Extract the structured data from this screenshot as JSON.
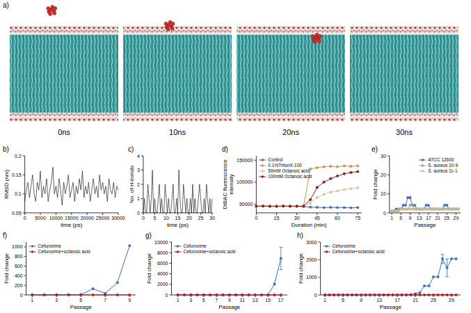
{
  "simulation": {
    "panel_label": "a)",
    "frames": [
      "0ns",
      "10ns",
      "20ns",
      "30ns"
    ]
  },
  "chart_data": [
    {
      "panel_label": "b)",
      "type": "line",
      "x_label": "time (ps)",
      "y_label": "RMSD (nm)",
      "x": [
        0,
        500,
        1000,
        1500,
        2000,
        2500,
        3000,
        3500,
        4000,
        4500,
        5000,
        5500,
        6000,
        6500,
        7000,
        7500,
        8000,
        8500,
        9000,
        9500,
        10000,
        10500,
        11000,
        11500,
        12000,
        12500,
        13000,
        13500,
        14000,
        14500,
        15000,
        15500,
        16000,
        16500,
        17000,
        17500,
        18000,
        18500,
        19000,
        19500,
        20000,
        20500,
        21000,
        21500,
        22000,
        22500,
        23000,
        23500,
        24000,
        24500,
        25000,
        25500,
        26000,
        26500,
        27000,
        27500,
        28000,
        28500,
        29000,
        29500,
        30000
      ],
      "values": [
        0.08,
        0.11,
        0.13,
        0.09,
        0.12,
        0.15,
        0.1,
        0.08,
        0.13,
        0.11,
        0.16,
        0.09,
        0.12,
        0.1,
        0.14,
        0.08,
        0.11,
        0.13,
        0.17,
        0.1,
        0.12,
        0.09,
        0.14,
        0.11,
        0.07,
        0.13,
        0.1,
        0.12,
        0.15,
        0.09,
        0.11,
        0.13,
        0.08,
        0.12,
        0.1,
        0.14,
        0.11,
        0.16,
        0.09,
        0.12,
        0.1,
        0.13,
        0.08,
        0.11,
        0.14,
        0.1,
        0.12,
        0.09,
        0.15,
        0.11,
        0.13,
        0.1,
        0.12,
        0.08,
        0.14,
        0.11,
        0.1,
        0.13,
        0.09,
        0.12,
        0.11
      ],
      "color": "#000000",
      "marker": "none",
      "xlim": [
        0,
        30000
      ],
      "xticks": [
        0,
        5000,
        10000,
        15000,
        20000,
        25000,
        30000
      ],
      "ylim": [
        0.05,
        0.2
      ],
      "yticks": [
        0.05,
        0.1,
        0.15,
        0.2
      ],
      "grid": false
    },
    {
      "panel_label": "c)",
      "type": "line",
      "x_label": "time (ps)",
      "y_label": "No. of H-bonds",
      "x": [
        0,
        0.5,
        1,
        1.5,
        2,
        2.5,
        3,
        3.5,
        4,
        4.5,
        5,
        5.5,
        6,
        6.5,
        7,
        7.5,
        8,
        8.5,
        9,
        9.5,
        10,
        10.5,
        11,
        11.5,
        12,
        12.5,
        13,
        13.5,
        14,
        14.5,
        15,
        15.5,
        16,
        16.5,
        17,
        17.5,
        18,
        18.5,
        19,
        19.5,
        20,
        20.5,
        21,
        21.5,
        22,
        22.5,
        23,
        23.5,
        24,
        24.5,
        25,
        25.5,
        26,
        26.5,
        27,
        27.5,
        28,
        28.5,
        29,
        29.5,
        30
      ],
      "values": [
        0,
        1,
        0,
        0,
        2,
        1,
        0,
        1,
        3,
        0,
        1,
        0,
        0,
        1,
        2,
        0,
        1,
        0,
        0,
        2,
        1,
        0,
        1,
        0,
        0,
        1,
        2,
        0,
        0,
        1,
        0,
        3,
        1,
        0,
        0,
        2,
        1,
        0,
        1,
        0,
        0,
        1,
        0,
        2,
        0,
        1,
        0,
        0,
        1,
        2,
        1,
        0,
        0,
        1,
        0,
        2,
        1,
        0,
        1,
        0,
        1
      ],
      "color": "#000000",
      "marker": "none",
      "xlim": [
        0,
        30
      ],
      "xticks": [
        0,
        5,
        10,
        15,
        20,
        25,
        30
      ],
      "ylim": [
        0,
        4
      ],
      "yticks": [
        0,
        1,
        2,
        3,
        4
      ],
      "grid": false
    },
    {
      "panel_label": "d)",
      "type": "line",
      "x_label": "Duration (min)",
      "y_label": "DiBAC fluorescence intensity",
      "x": [
        0,
        5,
        10,
        15,
        20,
        25,
        30,
        35,
        40,
        45,
        50,
        55,
        60,
        65,
        70,
        75
      ],
      "series": [
        {
          "name": "Control",
          "color": "#3b6cc2",
          "values": [
            45000,
            45500,
            45000,
            44500,
            45000,
            45500,
            45000,
            44000,
            43000,
            42500,
            42000,
            42500,
            42000,
            42000,
            41500,
            42000
          ]
        },
        {
          "name": "0.1%TritonX-100",
          "color": "#c4964f",
          "values": [
            45000,
            45500,
            45000,
            45000,
            45500,
            45000,
            45500,
            45000,
            130000,
            133000,
            135000,
            136000,
            135000,
            137000,
            136000,
            137000
          ]
        },
        {
          "name": "50mM Octanoic acid",
          "color": "#dcc598",
          "values": [
            45000,
            45000,
            45500,
            45000,
            45000,
            45500,
            45000,
            45000,
            52000,
            65000,
            72000,
            77000,
            80000,
            83000,
            85000,
            87000
          ]
        },
        {
          "name": "100mM Octanoic acid",
          "color": "#8b1c1c",
          "values": [
            45000,
            45500,
            45000,
            45000,
            45500,
            45000,
            45000,
            45500,
            60000,
            88000,
            100000,
            108000,
            114000,
            119000,
            122000,
            124000
          ]
        }
      ],
      "marker": "circle",
      "legend": "top-left",
      "xlim": [
        0,
        78
      ],
      "xticks": [
        0,
        15,
        30,
        45,
        60,
        75
      ],
      "ylim": [
        30000,
        160000
      ],
      "yticks": [
        50000,
        100000,
        150000
      ],
      "grid": false
    },
    {
      "panel_label": "e)",
      "type": "line",
      "x_label": "Passage",
      "y_label": "Fold change",
      "x": [
        1,
        2,
        3,
        4,
        5,
        6,
        7,
        8,
        9,
        10,
        11,
        12,
        13,
        14,
        15,
        16,
        17,
        18,
        19,
        20,
        21,
        22,
        23,
        24,
        25,
        26,
        27,
        28,
        29,
        30
      ],
      "series": [
        {
          "name": "ATCC 12600",
          "color": "#3b6cc2",
          "values": [
            1,
            1,
            2,
            2,
            2,
            4,
            4,
            8,
            8,
            4,
            4,
            2,
            2,
            2,
            2,
            4,
            4,
            2,
            2,
            2,
            2,
            2,
            2,
            4,
            4,
            2,
            2,
            2,
            2,
            2
          ]
        },
        {
          "name": "S. aureus 10-9",
          "color": "#a39a86",
          "values": [
            1,
            1,
            1,
            2,
            2,
            2,
            2,
            2,
            4,
            4,
            2,
            2,
            2,
            2,
            2,
            2,
            2,
            2,
            2,
            2,
            2,
            2,
            2,
            2,
            2,
            2,
            2,
            2,
            2,
            2
          ]
        },
        {
          "name": "S. aureus 11-1",
          "color": "#c9b98d",
          "values": [
            1,
            1,
            1,
            1,
            2,
            2,
            2,
            2,
            2,
            2,
            2,
            2,
            2,
            2,
            2,
            2,
            2,
            2,
            2,
            2,
            2,
            2,
            2,
            2,
            2,
            2,
            2,
            2,
            2,
            2
          ]
        }
      ],
      "marker": "circle",
      "legend": "top-right",
      "xlim": [
        0,
        31
      ],
      "xticks": [
        1,
        5,
        9,
        13,
        17,
        21,
        25,
        29
      ],
      "ylim": [
        0,
        30
      ],
      "yticks": [
        0,
        10,
        20,
        30
      ],
      "grid": false
    },
    {
      "panel_label": "f)",
      "type": "line",
      "x_label": "Passage",
      "y_label": "Fold change",
      "x": [
        1,
        2,
        3,
        4,
        5,
        6,
        7,
        8,
        9
      ],
      "series": [
        {
          "name": "Cefuroxime",
          "color": "#3b6cc2",
          "values": [
            1,
            1,
            2,
            4,
            8,
            128,
            32,
            256,
            1024
          ]
        },
        {
          "name": "Cefuroxime+octanoic acid",
          "color": "#c0161c",
          "values": [
            1,
            1,
            1,
            1,
            1,
            1,
            1,
            1,
            1
          ]
        }
      ],
      "marker": "circle",
      "legend": "top-left",
      "xlim": [
        0.5,
        9.5
      ],
      "xticks": [
        1,
        3,
        5,
        7,
        9
      ],
      "ylim": [
        0,
        1100
      ],
      "yticks": [
        0,
        200,
        400,
        600,
        800,
        1000
      ],
      "grid": false
    },
    {
      "panel_label": "g)",
      "type": "line",
      "x_label": "Passage",
      "y_label": "Fold change",
      "x": [
        1,
        2,
        3,
        4,
        5,
        6,
        7,
        8,
        9,
        10,
        11,
        12,
        13,
        14,
        15,
        16,
        17
      ],
      "series": [
        {
          "name": "Cefuroxime",
          "color": "#3b6cc2",
          "values": [
            1,
            1,
            1,
            1,
            1,
            1,
            1,
            1,
            1,
            1,
            1,
            1,
            1,
            1,
            16,
            2048,
            6900
          ],
          "errors": [
            null,
            null,
            null,
            null,
            null,
            null,
            null,
            null,
            null,
            null,
            null,
            null,
            null,
            null,
            null,
            null,
            2100
          ]
        },
        {
          "name": "Cefuroxime+octanoic acid",
          "color": "#c0161c",
          "values": [
            1,
            1,
            1,
            1,
            1,
            1,
            1,
            1,
            1,
            1,
            1,
            1,
            1,
            1,
            1,
            1,
            1
          ]
        }
      ],
      "marker": "circle",
      "legend": "top-left",
      "xlim": [
        0,
        18
      ],
      "xticks": [
        1,
        3,
        5,
        7,
        9,
        11,
        13,
        15,
        17
      ],
      "ylim": [
        0,
        10000
      ],
      "yticks": [
        0,
        2000,
        4000,
        6000,
        8000,
        10000
      ],
      "grid": false
    },
    {
      "panel_label": "h)",
      "type": "line",
      "x_label": "Passage",
      "y_label": "Fold change",
      "x": [
        1,
        2,
        3,
        4,
        5,
        6,
        7,
        8,
        9,
        10,
        11,
        12,
        13,
        14,
        15,
        16,
        17,
        18,
        19,
        20,
        21,
        22,
        23,
        24,
        25,
        26,
        27,
        28,
        29,
        30
      ],
      "series": [
        {
          "name": "Cefuroxime",
          "color": "#3b6cc2",
          "values": [
            1,
            1,
            1,
            1,
            1,
            1,
            1,
            1,
            1,
            1,
            1,
            1,
            1,
            1,
            1,
            1,
            1,
            1,
            1,
            16,
            64,
            128,
            512,
            512,
            1024,
            1024,
            2048,
            1536,
            2048,
            2048
          ],
          "errors": [
            null,
            null,
            null,
            null,
            null,
            null,
            null,
            null,
            null,
            null,
            null,
            null,
            null,
            null,
            null,
            null,
            null,
            null,
            null,
            null,
            null,
            null,
            null,
            null,
            null,
            null,
            250,
            500,
            null,
            null
          ]
        },
        {
          "name": "Cefuroxime+octanoic acid",
          "color": "#c0161c",
          "values": [
            1,
            1,
            1,
            1,
            1,
            1,
            1,
            1,
            1,
            1,
            1,
            1,
            1,
            1,
            1,
            1,
            1,
            1,
            1,
            1,
            1,
            1,
            1,
            1,
            1,
            1,
            1,
            1,
            1,
            1
          ]
        }
      ],
      "marker": "circle",
      "legend": "top-left",
      "xlim": [
        0,
        31
      ],
      "xticks": [
        1,
        5,
        9,
        13,
        17,
        21,
        25,
        29
      ],
      "ylim": [
        0,
        3000
      ],
      "yticks": [
        0,
        1000,
        2000,
        3000
      ],
      "grid": false
    }
  ]
}
